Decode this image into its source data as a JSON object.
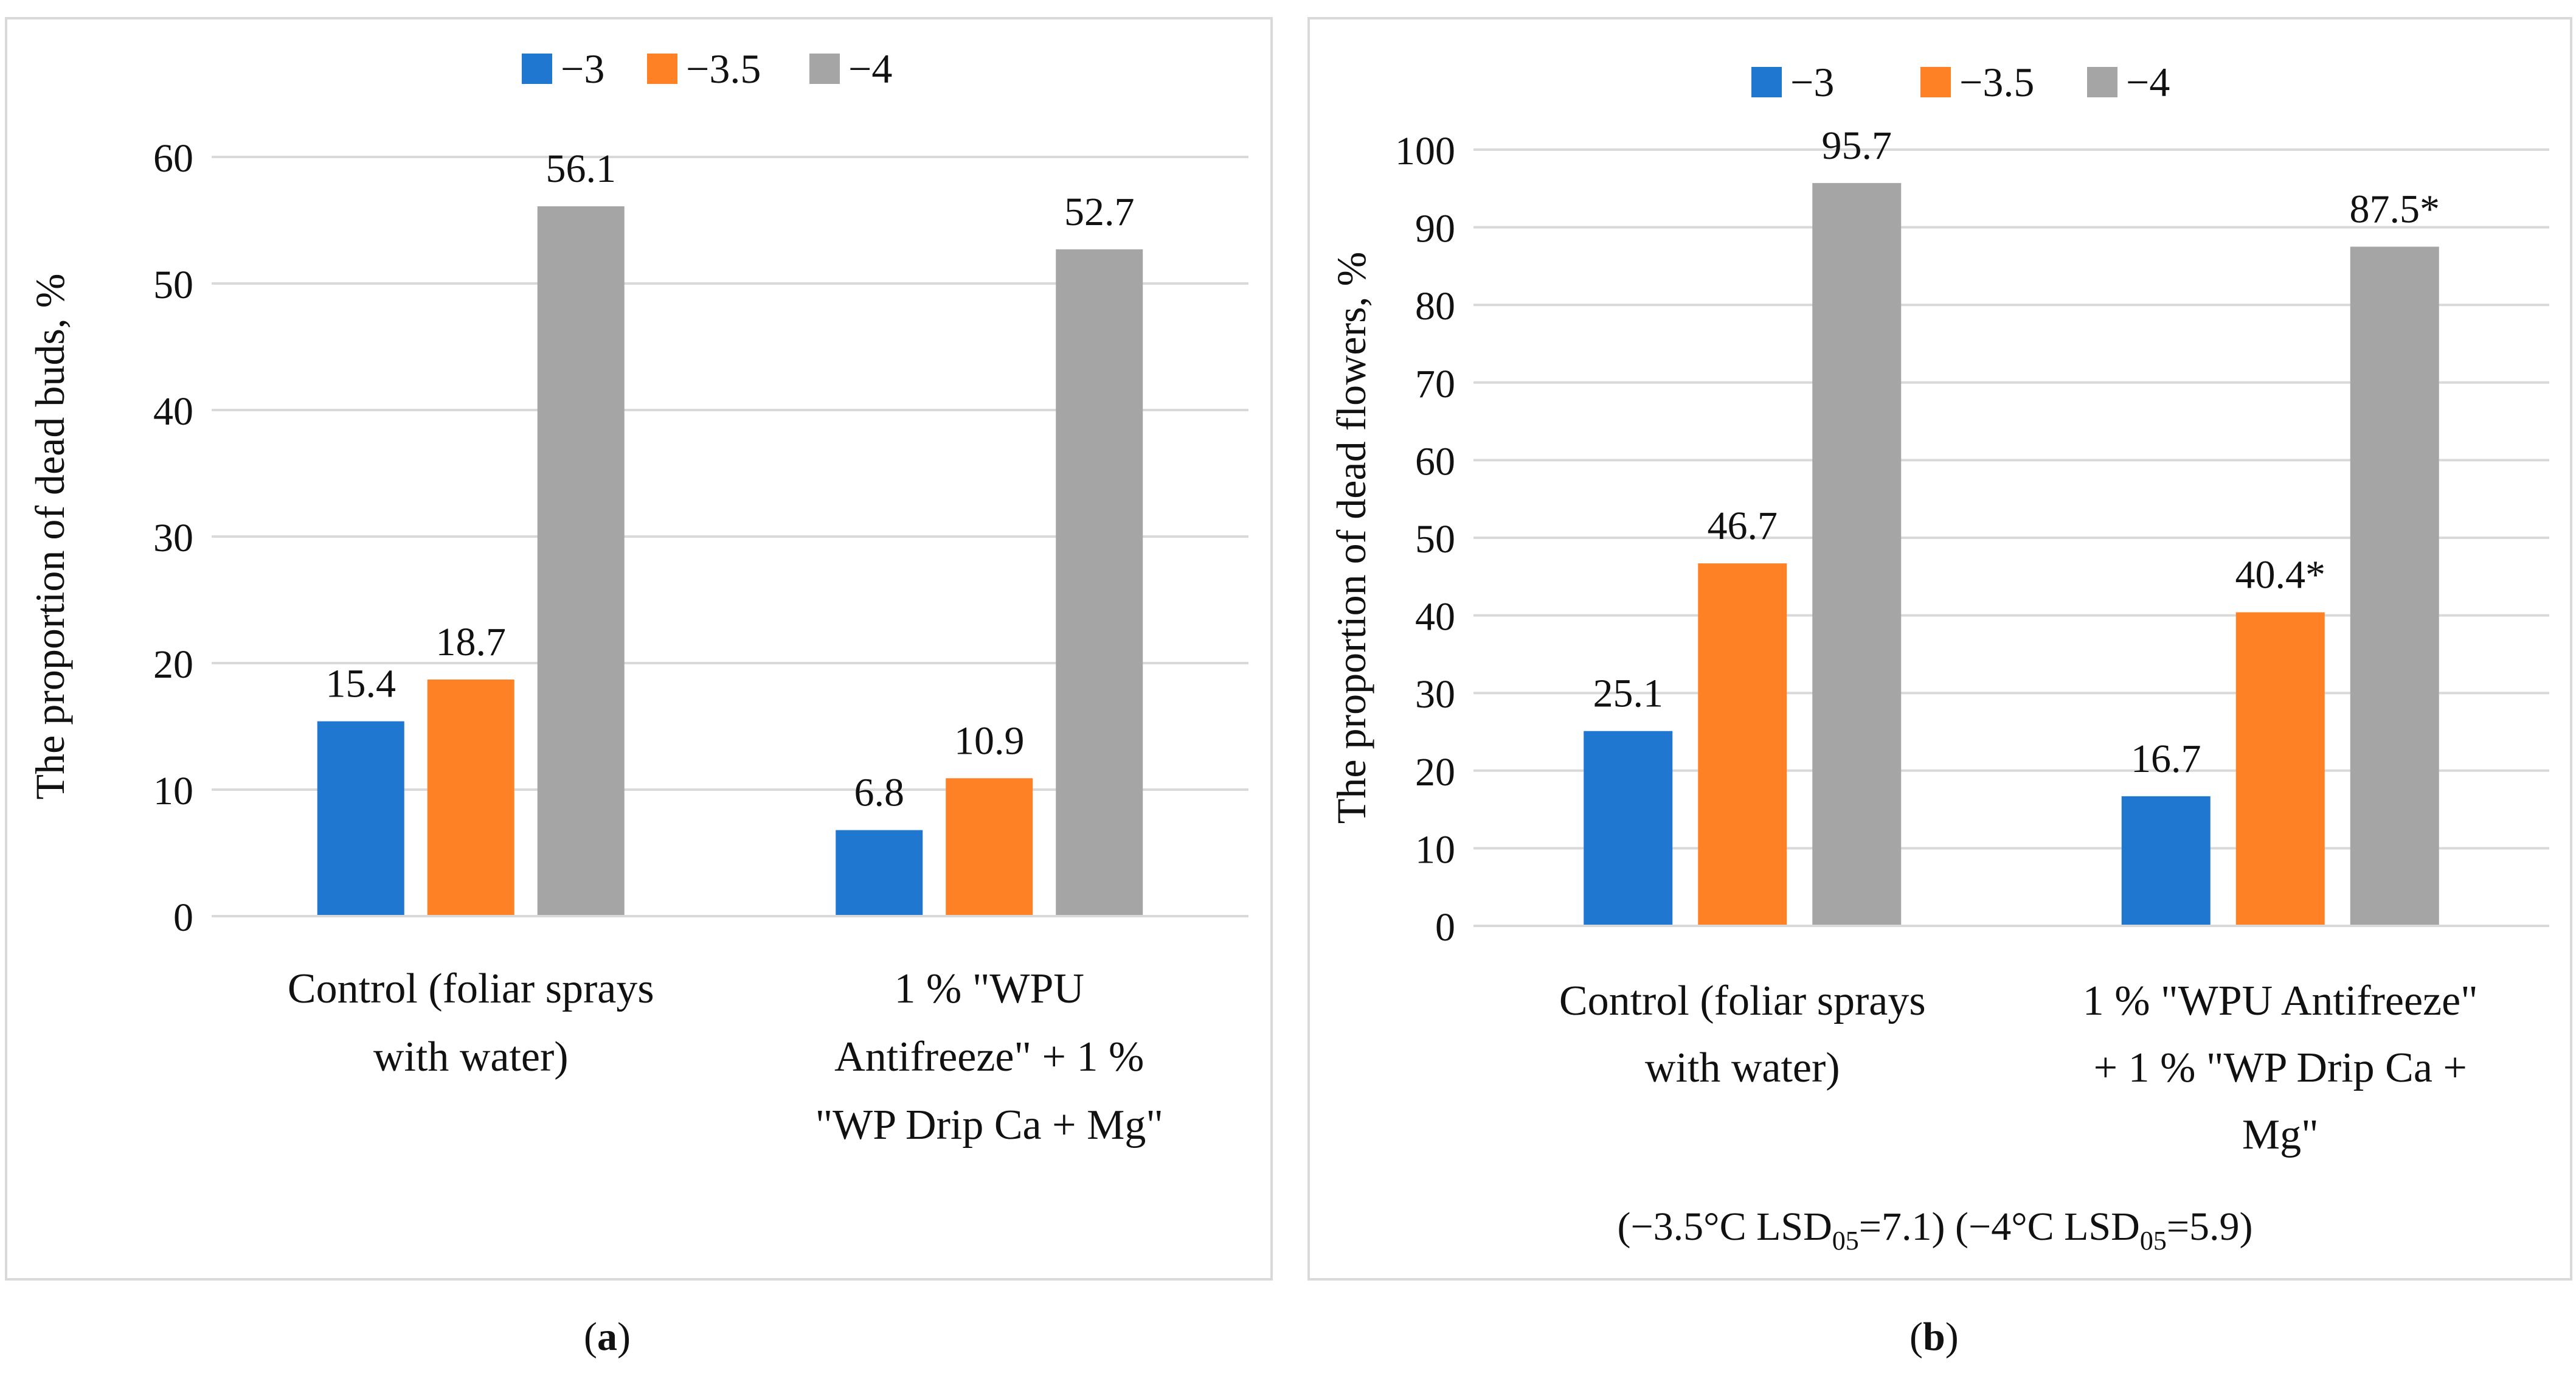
{
  "chart_data": [
    {
      "id": "a",
      "type": "bar",
      "panel_label": "a",
      "title": "",
      "xlabel": "",
      "ylabel": "The proportion of dead buds, %",
      "ylim": [
        0,
        60
      ],
      "yticks": [
        0,
        10,
        20,
        30,
        40,
        50,
        60
      ],
      "grid": true,
      "legend_position": "top",
      "categories": [
        [
          "Control (foliar sprays",
          "with water)"
        ],
        [
          "1 % \"WPU",
          "Antifreeze\" + 1 %",
          "\"WP Drip Ca + Mg\""
        ]
      ],
      "series": [
        {
          "name": "−3",
          "color": "#1f77d0",
          "values": [
            15.4,
            6.8
          ],
          "labels": [
            "15.4",
            "6.8"
          ]
        },
        {
          "name": "−3.5",
          "color": "#ff8126",
          "values": [
            18.7,
            10.9
          ],
          "labels": [
            "18.7",
            "10.9"
          ]
        },
        {
          "name": "−4",
          "color": "#a5a5a5",
          "values": [
            56.1,
            52.7
          ],
          "labels": [
            "56.1",
            "52.7"
          ]
        }
      ]
    },
    {
      "id": "b",
      "type": "bar",
      "panel_label": "b",
      "title": "",
      "xlabel": "",
      "ylabel": "The proportion of dead flowers, %",
      "ylim": [
        0,
        100
      ],
      "yticks": [
        0,
        10,
        20,
        30,
        40,
        50,
        60,
        70,
        80,
        90,
        100
      ],
      "grid": true,
      "legend_position": "top",
      "categories": [
        [
          "Control (foliar sprays",
          "with water)"
        ],
        [
          "1 % \"WPU Antifreeze\"",
          "+ 1 % \"WP Drip Ca +",
          "Mg\""
        ]
      ],
      "series": [
        {
          "name": "−3",
          "color": "#1f77d0",
          "values": [
            25.1,
            16.7
          ],
          "labels": [
            "25.1",
            "16.7"
          ]
        },
        {
          "name": "−3.5",
          "color": "#ff8126",
          "values": [
            46.7,
            40.4
          ],
          "labels": [
            "46.7",
            "40.4*"
          ]
        },
        {
          "name": "−4",
          "color": "#a5a5a5",
          "values": [
            95.7,
            87.5
          ],
          "labels": [
            "95.7",
            "87.5*"
          ]
        }
      ],
      "annotation": {
        "lsd_1": {
          "prefix": "(−3.5°C LSD",
          "sub": "05",
          "suffix": "=7.1)"
        },
        "lsd_2": {
          "prefix": "(−4°C LSD",
          "sub": "05",
          "suffix": "=5.9)"
        }
      }
    }
  ]
}
